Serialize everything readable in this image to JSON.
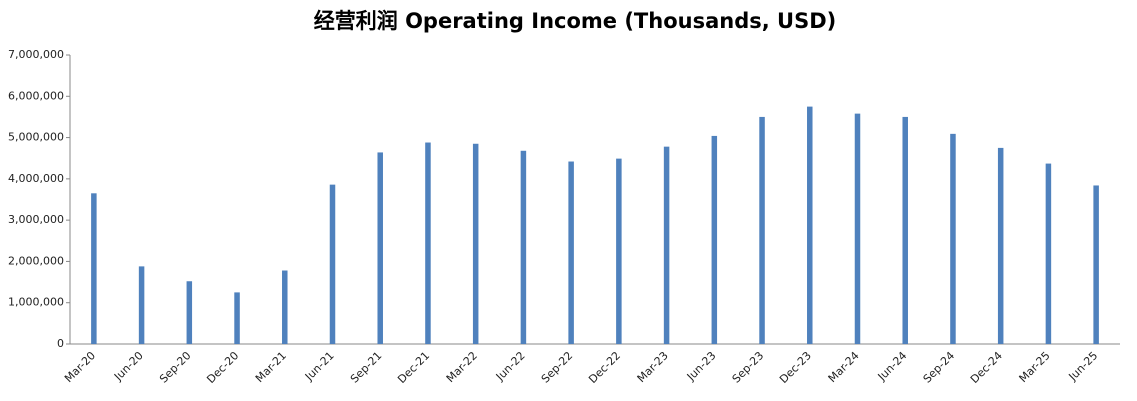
{
  "chart_data": {
    "type": "bar",
    "title": "经营利润 Operating Income (Thousands, USD)",
    "categories": [
      "Mar-20",
      "Jun-20",
      "Sep-20",
      "Dec-20",
      "Mar-21",
      "Jun-21",
      "Sep-21",
      "Dec-21",
      "Mar-22",
      "Jun-22",
      "Sep-22",
      "Dec-22",
      "Mar-23",
      "Jun-23",
      "Sep-23",
      "Dec-23",
      "Mar-24",
      "Jun-24",
      "Sep-24",
      "Dec-24",
      "Mar-25",
      "Jun-25"
    ],
    "values": [
      3650000,
      1880000,
      1520000,
      1250000,
      1780000,
      3860000,
      4640000,
      4880000,
      4850000,
      4680000,
      4420000,
      4490000,
      4780000,
      5040000,
      5500000,
      5750000,
      5580000,
      5500000,
      5090000,
      4750000,
      4370000,
      3840000
    ],
    "color": "#4f81bd",
    "ylim": [
      0,
      7000000
    ],
    "yticks": [
      0,
      {
        "value": 1000000,
        "label": "1,000,000"
      },
      {
        "value": 2000000,
        "label": "2,000,000"
      },
      {
        "value": 3000000,
        "label": "3,000,000"
      },
      {
        "value": 4000000,
        "label": "4,000,000"
      },
      {
        "value": 5000000,
        "label": "5,000,000"
      },
      {
        "value": 6000000,
        "label": "6,000,000"
      },
      {
        "value": 7000000,
        "label": "7,000,000"
      }
    ],
    "grid": false
  }
}
